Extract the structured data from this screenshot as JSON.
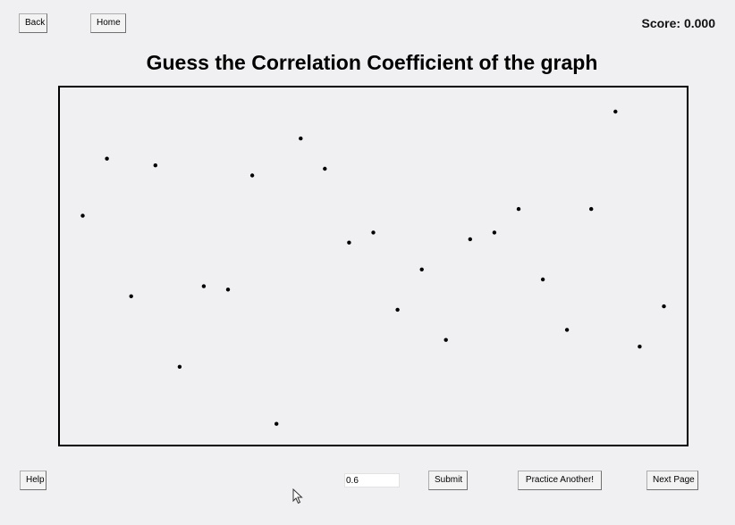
{
  "nav": {
    "back_label": "Back",
    "home_label": "Home"
  },
  "score": {
    "text": "Score: 0.000"
  },
  "title": "Guess the Correlation Coefficient of the graph",
  "chart_data": {
    "type": "scatter",
    "title": "",
    "xlabel": "",
    "ylabel": "",
    "xlim": [
      0,
      100
    ],
    "ylim": [
      0,
      100
    ],
    "grid": false,
    "points": [
      [
        2,
        65
      ],
      [
        6,
        82
      ],
      [
        10,
        41
      ],
      [
        14,
        80
      ],
      [
        18,
        20
      ],
      [
        22,
        44
      ],
      [
        26,
        43
      ],
      [
        30,
        77
      ],
      [
        34,
        3
      ],
      [
        38,
        88
      ],
      [
        42,
        79
      ],
      [
        46,
        57
      ],
      [
        50,
        60
      ],
      [
        54,
        37
      ],
      [
        58,
        49
      ],
      [
        62,
        28
      ],
      [
        66,
        58
      ],
      [
        70,
        60
      ],
      [
        74,
        67
      ],
      [
        78,
        46
      ],
      [
        82,
        31
      ],
      [
        86,
        67
      ],
      [
        90,
        96
      ],
      [
        94,
        26
      ],
      [
        98,
        38
      ]
    ]
  },
  "controls": {
    "help_label": "Help",
    "answer_value": "0.6",
    "submit_label": "Submit",
    "practice_label": "Practice Another!",
    "next_label": "Next Page"
  },
  "colors": {
    "point": "#000000",
    "background": "#f0eff2",
    "frame": "#000000"
  }
}
